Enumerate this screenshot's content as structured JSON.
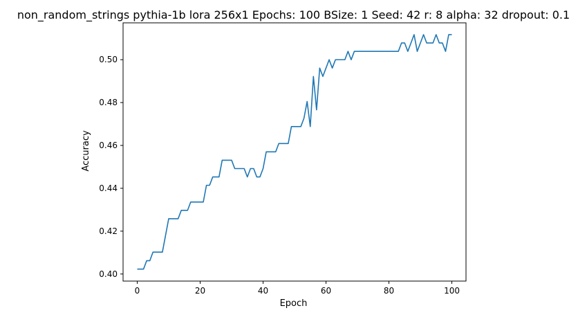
{
  "chart_data": {
    "type": "line",
    "title": "non_random_strings pythia-1b lora 256x1 Epochs: 100 BSize: 1 Seed: 42 r: 8 alpha: 32 dropout: 0.1",
    "xlabel": "Epoch",
    "ylabel": "Accuracy",
    "xlim": [
      -4.5,
      104.5
    ],
    "ylim": [
      0.3967,
      0.5172
    ],
    "xticks": [
      0,
      20,
      40,
      60,
      80,
      100
    ],
    "yticks": [
      0.4,
      0.42,
      0.44,
      0.46,
      0.48,
      0.5
    ],
    "xtick_labels": [
      "0",
      "20",
      "40",
      "60",
      "80",
      "100"
    ],
    "ytick_labels": [
      "0.40",
      "0.42",
      "0.44",
      "0.46",
      "0.48",
      "0.50"
    ],
    "grid": false,
    "color": "#1f77b4",
    "series": [
      {
        "x": [
          0,
          1,
          2,
          3,
          4,
          5,
          6,
          7,
          8,
          9,
          10,
          11,
          12,
          13,
          14,
          15,
          16,
          17,
          18,
          19,
          20,
          21,
          22,
          23,
          24,
          25,
          26,
          27,
          28,
          29,
          30,
          31,
          32,
          33,
          34,
          35,
          36,
          37,
          38,
          39,
          40,
          41,
          42,
          43,
          44,
          45,
          46,
          47,
          48,
          49,
          50,
          51,
          52,
          53,
          54,
          55,
          56,
          57,
          58,
          59,
          60,
          61,
          62,
          63,
          64,
          65,
          66,
          67,
          68,
          69,
          70,
          71,
          72,
          73,
          74,
          75,
          76,
          77,
          78,
          79,
          80,
          81,
          82,
          83,
          84,
          85,
          86,
          87,
          88,
          89,
          90,
          91,
          92,
          93,
          94,
          95,
          96,
          97,
          98,
          99,
          100
        ],
        "y": [
          0.4023,
          0.4023,
          0.4023,
          0.4062,
          0.4062,
          0.4102,
          0.4102,
          0.4102,
          0.4102,
          0.418,
          0.4258,
          0.4258,
          0.4258,
          0.4258,
          0.4297,
          0.4297,
          0.4297,
          0.4336,
          0.4336,
          0.4336,
          0.4336,
          0.4336,
          0.4414,
          0.4414,
          0.4453,
          0.4453,
          0.4453,
          0.4531,
          0.4531,
          0.4531,
          0.4531,
          0.4492,
          0.4492,
          0.4492,
          0.4492,
          0.4453,
          0.4492,
          0.4492,
          0.4453,
          0.4453,
          0.4492,
          0.457,
          0.457,
          0.457,
          0.457,
          0.4609,
          0.4609,
          0.4609,
          0.4609,
          0.4688,
          0.4688,
          0.4688,
          0.4688,
          0.4727,
          0.4805,
          0.4688,
          0.4922,
          0.4766,
          0.4961,
          0.4922,
          0.4961,
          0.5,
          0.4961,
          0.5,
          0.5,
          0.5,
          0.5,
          0.5039,
          0.5,
          0.5039,
          0.5039,
          0.5039,
          0.5039,
          0.5039,
          0.5039,
          0.5039,
          0.5039,
          0.5039,
          0.5039,
          0.5039,
          0.5039,
          0.5039,
          0.5039,
          0.5039,
          0.5078,
          0.5078,
          0.5039,
          0.5078,
          0.5117,
          0.5039,
          0.5078,
          0.5117,
          0.5078,
          0.5078,
          0.5078,
          0.5117,
          0.5078,
          0.5078,
          0.5039,
          0.5117,
          0.5117
        ]
      }
    ]
  }
}
